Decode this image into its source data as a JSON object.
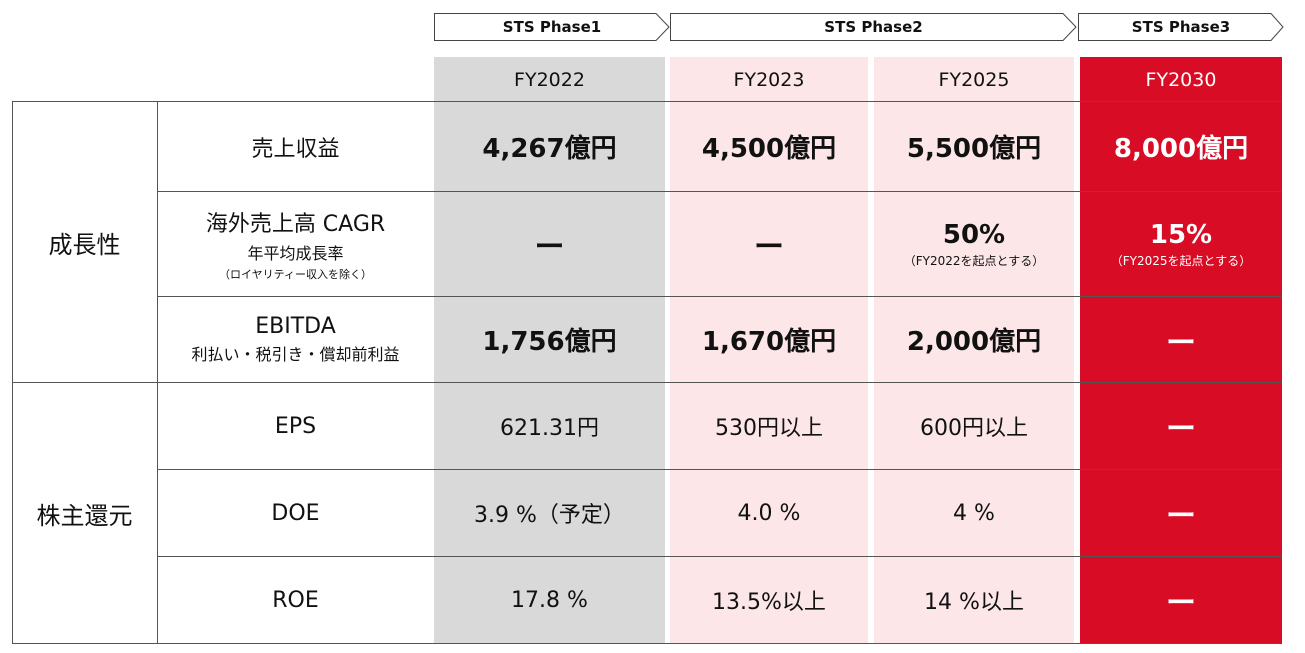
{
  "phases": [
    {
      "label": "STS Phase1"
    },
    {
      "label": "STS Phase2"
    },
    {
      "label": "STS Phase3"
    }
  ],
  "years": [
    "FY2022",
    "FY2023",
    "FY2025",
    "FY2030"
  ],
  "categories": {
    "growth": "成長性",
    "return": "株主還元"
  },
  "metrics": {
    "revenue": {
      "label": "売上収益"
    },
    "cagr": {
      "label": "海外売上高 CAGR",
      "sub1": "年平均成長率",
      "sub2": "（ロイヤリティー収入を除く）"
    },
    "ebitda": {
      "label": "EBITDA",
      "sub1": "利払い・税引き・償却前利益"
    },
    "eps": {
      "label": "EPS"
    },
    "doe": {
      "label": "DOE"
    },
    "roe": {
      "label": "ROE"
    }
  },
  "values": {
    "revenue": [
      "4,267億円",
      "4,500億円",
      "5,500億円",
      "8,000億円"
    ],
    "cagr": [
      "ー",
      "ー",
      "50%",
      "15%"
    ],
    "cagr_notes": [
      "",
      "",
      "（FY2022を起点とする）",
      "（FY2025を起点とする）"
    ],
    "ebitda": [
      "1,756億円",
      "1,670億円",
      "2,000億円",
      "ー"
    ],
    "eps": [
      "621.31円",
      "530円以上",
      "600円以上",
      "ー"
    ],
    "doe": [
      "3.9 %（予定）",
      "4.0 %",
      "4 %",
      "ー"
    ],
    "roe": [
      "17.8 %",
      "13.5%以上",
      "14 %以上",
      "ー"
    ]
  },
  "colors": {
    "fy2022_bg": "#d9d9d9",
    "plan_bg": "#fce6e8",
    "fy2030_bg": "#d80c24"
  }
}
